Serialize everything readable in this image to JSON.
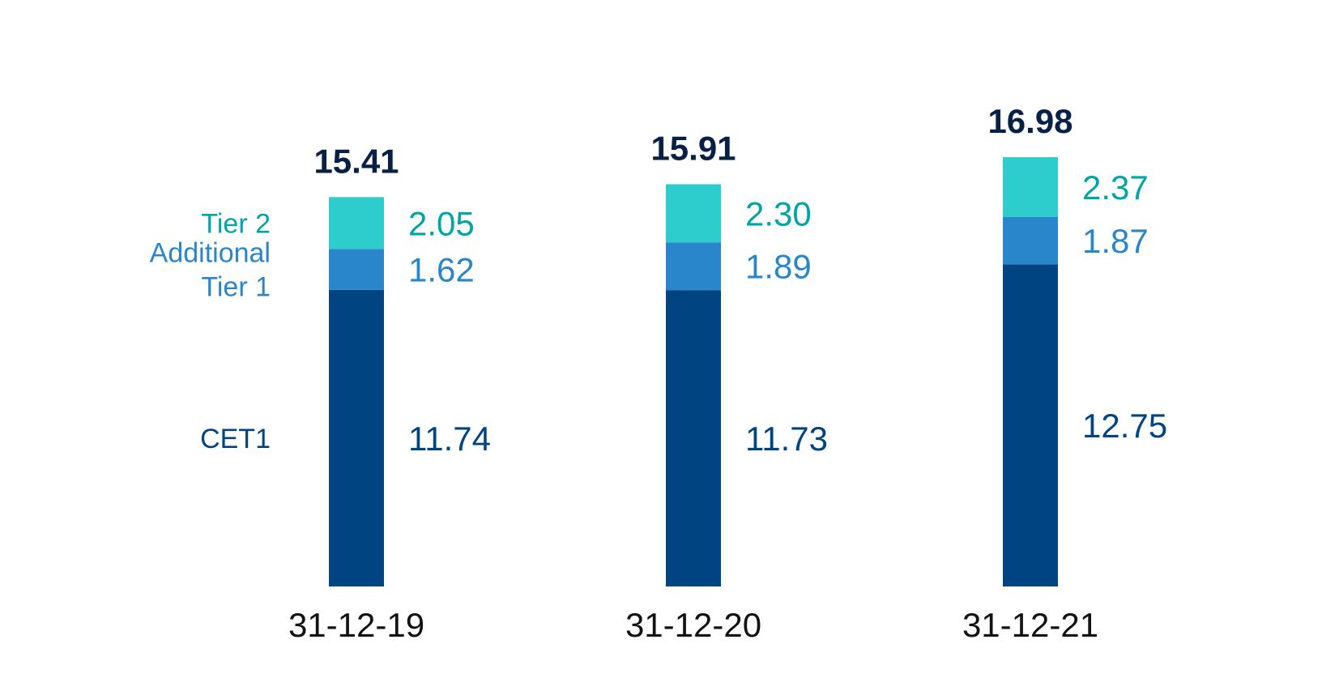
{
  "chart_data": {
    "type": "bar",
    "stacked": true,
    "categories": [
      "31-12-19",
      "31-12-20",
      "31-12-21"
    ],
    "series": [
      {
        "name": "CET1",
        "values": [
          11.74,
          11.73,
          12.75
        ],
        "color": "#004481"
      },
      {
        "name": "Additional Tier 1",
        "values": [
          1.62,
          1.89,
          1.87
        ],
        "color": "#2a86ca"
      },
      {
        "name": "Tier 2",
        "values": [
          2.05,
          2.3,
          2.37
        ],
        "color": "#2dcccd"
      }
    ],
    "totals": [
      "15.41",
      "15.91",
      "16.98"
    ],
    "labels": [
      [
        "11.74",
        "11.73",
        "12.75"
      ],
      [
        "1.62",
        "1.89",
        "1.87"
      ],
      [
        "2.05",
        "2.30",
        "2.37"
      ]
    ],
    "legend_lines": [
      [
        "CET1"
      ],
      [
        "Additional",
        "Tier 1"
      ],
      [
        "Tier 2"
      ]
    ],
    "label_colors": [
      "#004481",
      "#2a86ca",
      "#02a5a5"
    ],
    "total_color": "#072146",
    "category_color": "#121212",
    "legend_placement": "left",
    "ylim": [
      0,
      17
    ],
    "grid": false
  }
}
